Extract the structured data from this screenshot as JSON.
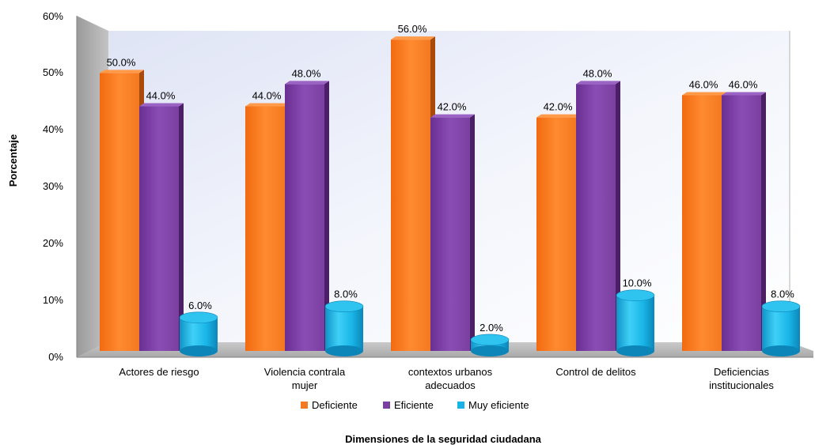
{
  "chart_data": {
    "type": "bar",
    "title": "",
    "xlabel": "Dimensiones de la seguridad ciudadana",
    "ylabel": "Porcentaje",
    "ylim": [
      0,
      60
    ],
    "y_ticks": [
      "0%",
      "10%",
      "20%",
      "30%",
      "40%",
      "50%",
      "60%"
    ],
    "categories": [
      [
        "Actores de riesgo"
      ],
      [
        "Violencia contrala",
        "mujer"
      ],
      [
        "contextos urbanos",
        "adecuados"
      ],
      [
        "Control de delitos"
      ],
      [
        "Deficiencias",
        "institucionales"
      ]
    ],
    "series": [
      {
        "name": "Deficiente",
        "values": [
          50.0,
          44.0,
          56.0,
          42.0,
          46.0
        ],
        "labels": [
          "50.0%",
          "44.0%",
          "56.0%",
          "42.0%",
          "46.0%"
        ],
        "color": "#F47920",
        "shape": "box"
      },
      {
        "name": "Eficiente",
        "values": [
          44.0,
          48.0,
          42.0,
          48.0,
          46.0
        ],
        "labels": [
          "44.0%",
          "48.0%",
          "42.0%",
          "48.0%",
          "46.0%"
        ],
        "color": "#7B3FA0",
        "shape": "box"
      },
      {
        "name": "Muy eficiente",
        "values": [
          6.0,
          8.0,
          2.0,
          10.0,
          8.0
        ],
        "labels": [
          "6.0%",
          "8.0%",
          "2.0%",
          "10.0%",
          "8.0%"
        ],
        "color": "#18B4E6",
        "shape": "cylinder"
      }
    ],
    "legend_position": "bottom",
    "grid": false,
    "three_d": true
  }
}
